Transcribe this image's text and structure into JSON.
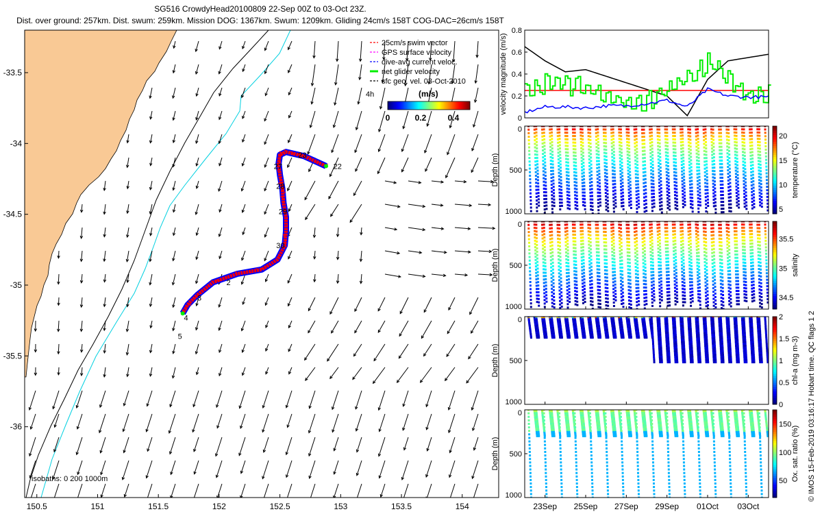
{
  "header": {
    "line1": "SG516 CrowdyHead20100809 22-Sep 00Z to 03-Oct 23Z.",
    "line2": "Dist. over ground: 257km. Dist. swum: 259km. Mission DOG: 1367km. Swum: 1209km. Gliding 24cm/s 158T COG-DAC=26cm/s 158T"
  },
  "credit": "© IMOS 15-Feb-2019 03:16:17 Hobart time. QC flags 1  2",
  "colors": {
    "land": "#f9c995",
    "isobath_200": "#000000",
    "isobath_1000": "#00d0e0",
    "track_red": "#ff0000",
    "track_blue": "#0000ff",
    "swim": "#ff0000",
    "gps": "#ff00ff",
    "dac": "#0000ff",
    "net": "#00ee00",
    "geo": "#000000"
  },
  "chart_data": [
    {
      "type": "map",
      "panel": "glider-track-map",
      "xlim": [
        150.4,
        154.3
      ],
      "ylim": [
        -36.5,
        -33.2
      ],
      "xticks": [
        "150.5",
        "151",
        "151.5",
        "152",
        "152.5",
        "153",
        "153.5",
        "154"
      ],
      "yticks": [
        "-33.5",
        "-34",
        "-34.5",
        "-35",
        "-35.5",
        "-36"
      ],
      "isobaths_label": "isobaths: 0   200   1000m",
      "legend": [
        {
          "label": "25cm/s swim vector",
          "color": "#ff0000"
        },
        {
          "label": "GPS surface velocity",
          "color": "#ff00ff"
        },
        {
          "label": "dive-avg current veloc.",
          "color": "#0000ff"
        },
        {
          "label": "net glider velocity",
          "color": "#00ee00"
        },
        {
          "label": "sfc geo. vel. 03-Oct-2010",
          "color": "#000000"
        }
      ],
      "time_marker": "4h",
      "colorbar": {
        "title": "(m/s)",
        "ticks": [
          "0",
          "0.2",
          "0.4"
        ],
        "range": [
          0,
          0.5
        ]
      },
      "track": [
        [
          152.88,
          -34.16
        ],
        [
          152.7,
          -34.09
        ],
        [
          152.55,
          -34.06
        ],
        [
          152.5,
          -34.08
        ],
        [
          152.49,
          -34.14
        ],
        [
          152.5,
          -34.22
        ],
        [
          152.52,
          -34.32
        ],
        [
          152.53,
          -34.42
        ],
        [
          152.55,
          -34.52
        ],
        [
          152.55,
          -34.62
        ],
        [
          152.54,
          -34.72
        ],
        [
          152.48,
          -34.82
        ],
        [
          152.35,
          -34.89
        ],
        [
          152.15,
          -34.92
        ],
        [
          151.95,
          -34.98
        ],
        [
          151.82,
          -35.07
        ],
        [
          151.74,
          -35.14
        ],
        [
          151.7,
          -35.2
        ]
      ],
      "day_labels": [
        {
          "text": "22",
          "lon": 152.94,
          "lat": -34.16
        },
        {
          "text": "23",
          "lon": 152.65,
          "lat": -34.08
        },
        {
          "text": "27",
          "lon": 152.45,
          "lat": -34.16
        },
        {
          "text": "28",
          "lon": 152.47,
          "lat": -34.3
        },
        {
          "text": "29",
          "lon": 152.49,
          "lat": -34.48
        },
        {
          "text": "30",
          "lon": 152.47,
          "lat": -34.72
        },
        {
          "text": "2",
          "lon": 152.06,
          "lat": -34.98
        },
        {
          "text": "3",
          "lon": 151.82,
          "lat": -35.09
        },
        {
          "text": "4",
          "lon": 151.71,
          "lat": -35.23
        },
        {
          "text": "5",
          "lon": 151.66,
          "lat": -35.36
        }
      ]
    },
    {
      "type": "line",
      "panel": "velocity-magnitude",
      "ylabel": "velocity magnitude (m/s)",
      "ylim": [
        0,
        0.8
      ],
      "yticks": [
        "0",
        "0.2",
        "0.4",
        "0.6",
        "0.8"
      ],
      "x": [
        22,
        23,
        24,
        25,
        26,
        27,
        28,
        29,
        30,
        31,
        32,
        33,
        34
      ],
      "series": [
        {
          "name": "sfc geo. vel.",
          "color": "#000000",
          "values": [
            0.65,
            0.52,
            0.42,
            0.44,
            0.38,
            0.32,
            0.26,
            0.2,
            0.02,
            0.35,
            0.52,
            0.55,
            0.58
          ]
        },
        {
          "name": "swim 25cm/s",
          "color": "#ff0000",
          "values": [
            0.25,
            0.25,
            0.25,
            0.25,
            0.25,
            0.25,
            0.25,
            0.25,
            0.25,
            0.25,
            0.25,
            0.25,
            0.25
          ]
        },
        {
          "name": "net glider velocity",
          "color": "#00ee00",
          "values": [
            0.24,
            0.32,
            0.3,
            0.28,
            0.22,
            0.12,
            0.16,
            0.24,
            0.36,
            0.5,
            0.35,
            0.2,
            0.24
          ]
        },
        {
          "name": "dive-avg current",
          "color": "#0000ff",
          "values": [
            0.05,
            0.1,
            0.1,
            0.09,
            0.11,
            0.11,
            0.13,
            0.16,
            0.1,
            0.26,
            0.2,
            0.19,
            0.19
          ]
        }
      ]
    },
    {
      "type": "scatter",
      "panel": "temperature",
      "ylabel": "Depth (m)",
      "colorbar_label": "temperature (°C)",
      "yticks": [
        "0",
        "500",
        "1000"
      ],
      "cticks": [
        "5",
        "10",
        "15",
        "20"
      ],
      "crange": [
        4,
        22
      ]
    },
    {
      "type": "scatter",
      "panel": "salinity",
      "ylabel": "Depth (m)",
      "colorbar_label": "salinity",
      "yticks": [
        "0",
        "500",
        "1000"
      ],
      "cticks": [
        "34.5",
        "35",
        "35.5"
      ],
      "crange": [
        34.3,
        35.8
      ]
    },
    {
      "type": "scatter",
      "panel": "chlorophyll",
      "ylabel": "Depth (m)",
      "colorbar_label": "chl-a (mg m-3)",
      "yticks": [
        "0",
        "500",
        "1000"
      ],
      "cticks": [
        "0",
        "0.5",
        "1",
        "1.5",
        "2"
      ],
      "crange": [
        0,
        2
      ]
    },
    {
      "type": "scatter",
      "panel": "oxygen",
      "ylabel": "Depth (m)",
      "colorbar_label": "Ox. sat. ratio (%)",
      "yticks": [
        "0",
        "500",
        "1000"
      ],
      "cticks": [
        "50",
        "100",
        "150"
      ],
      "crange": [
        20,
        175
      ],
      "xticks": [
        "23Sep",
        "25Sep",
        "27Sep",
        "29Sep",
        "01Oct",
        "03Oct"
      ]
    }
  ]
}
